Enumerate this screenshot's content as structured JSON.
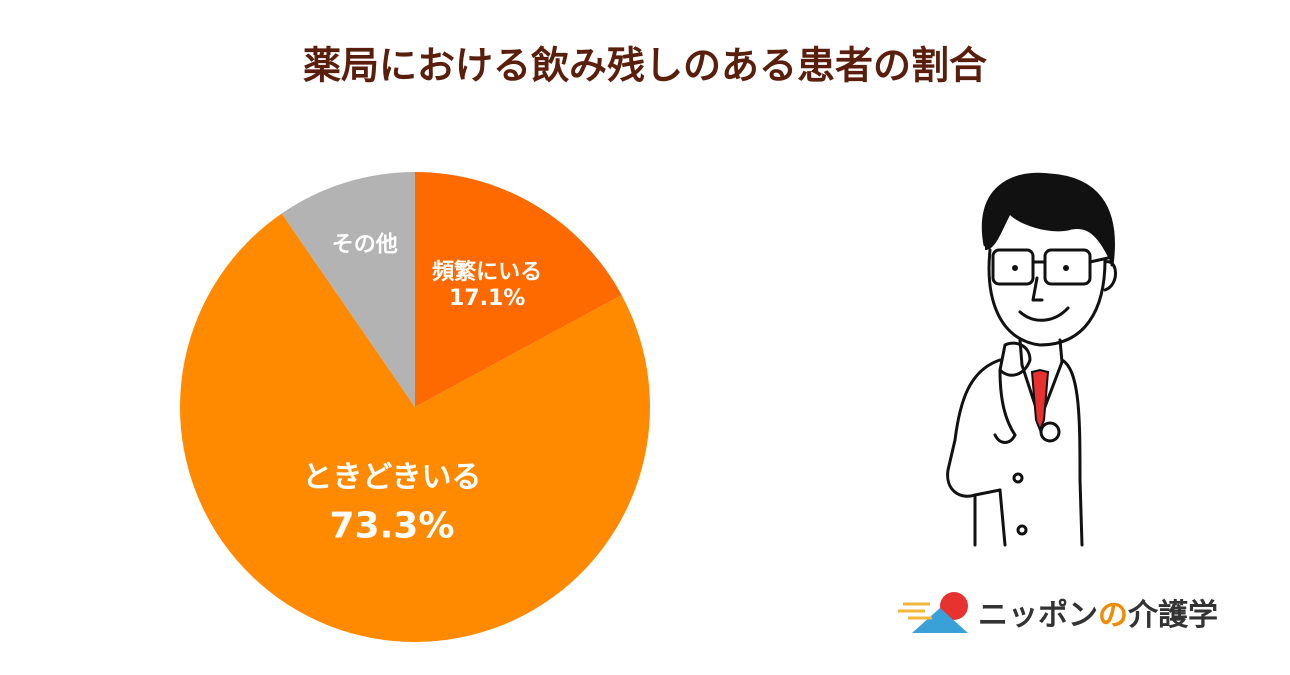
{
  "chart_data": {
    "type": "pie",
    "title": "薬局における飲み残しのある患者の割合",
    "categories": [
      "頻繁にいる",
      "ときどきいる",
      "その他"
    ],
    "values": [
      17.1,
      73.3,
      9.6
    ],
    "value_labels": [
      "17.1%",
      "73.3%",
      null
    ],
    "colors": [
      "#ff6a00",
      "#ff8a00",
      "#b3b3b3"
    ]
  },
  "logo": {
    "parts": [
      "ニッポン",
      "の",
      "介護学"
    ]
  }
}
